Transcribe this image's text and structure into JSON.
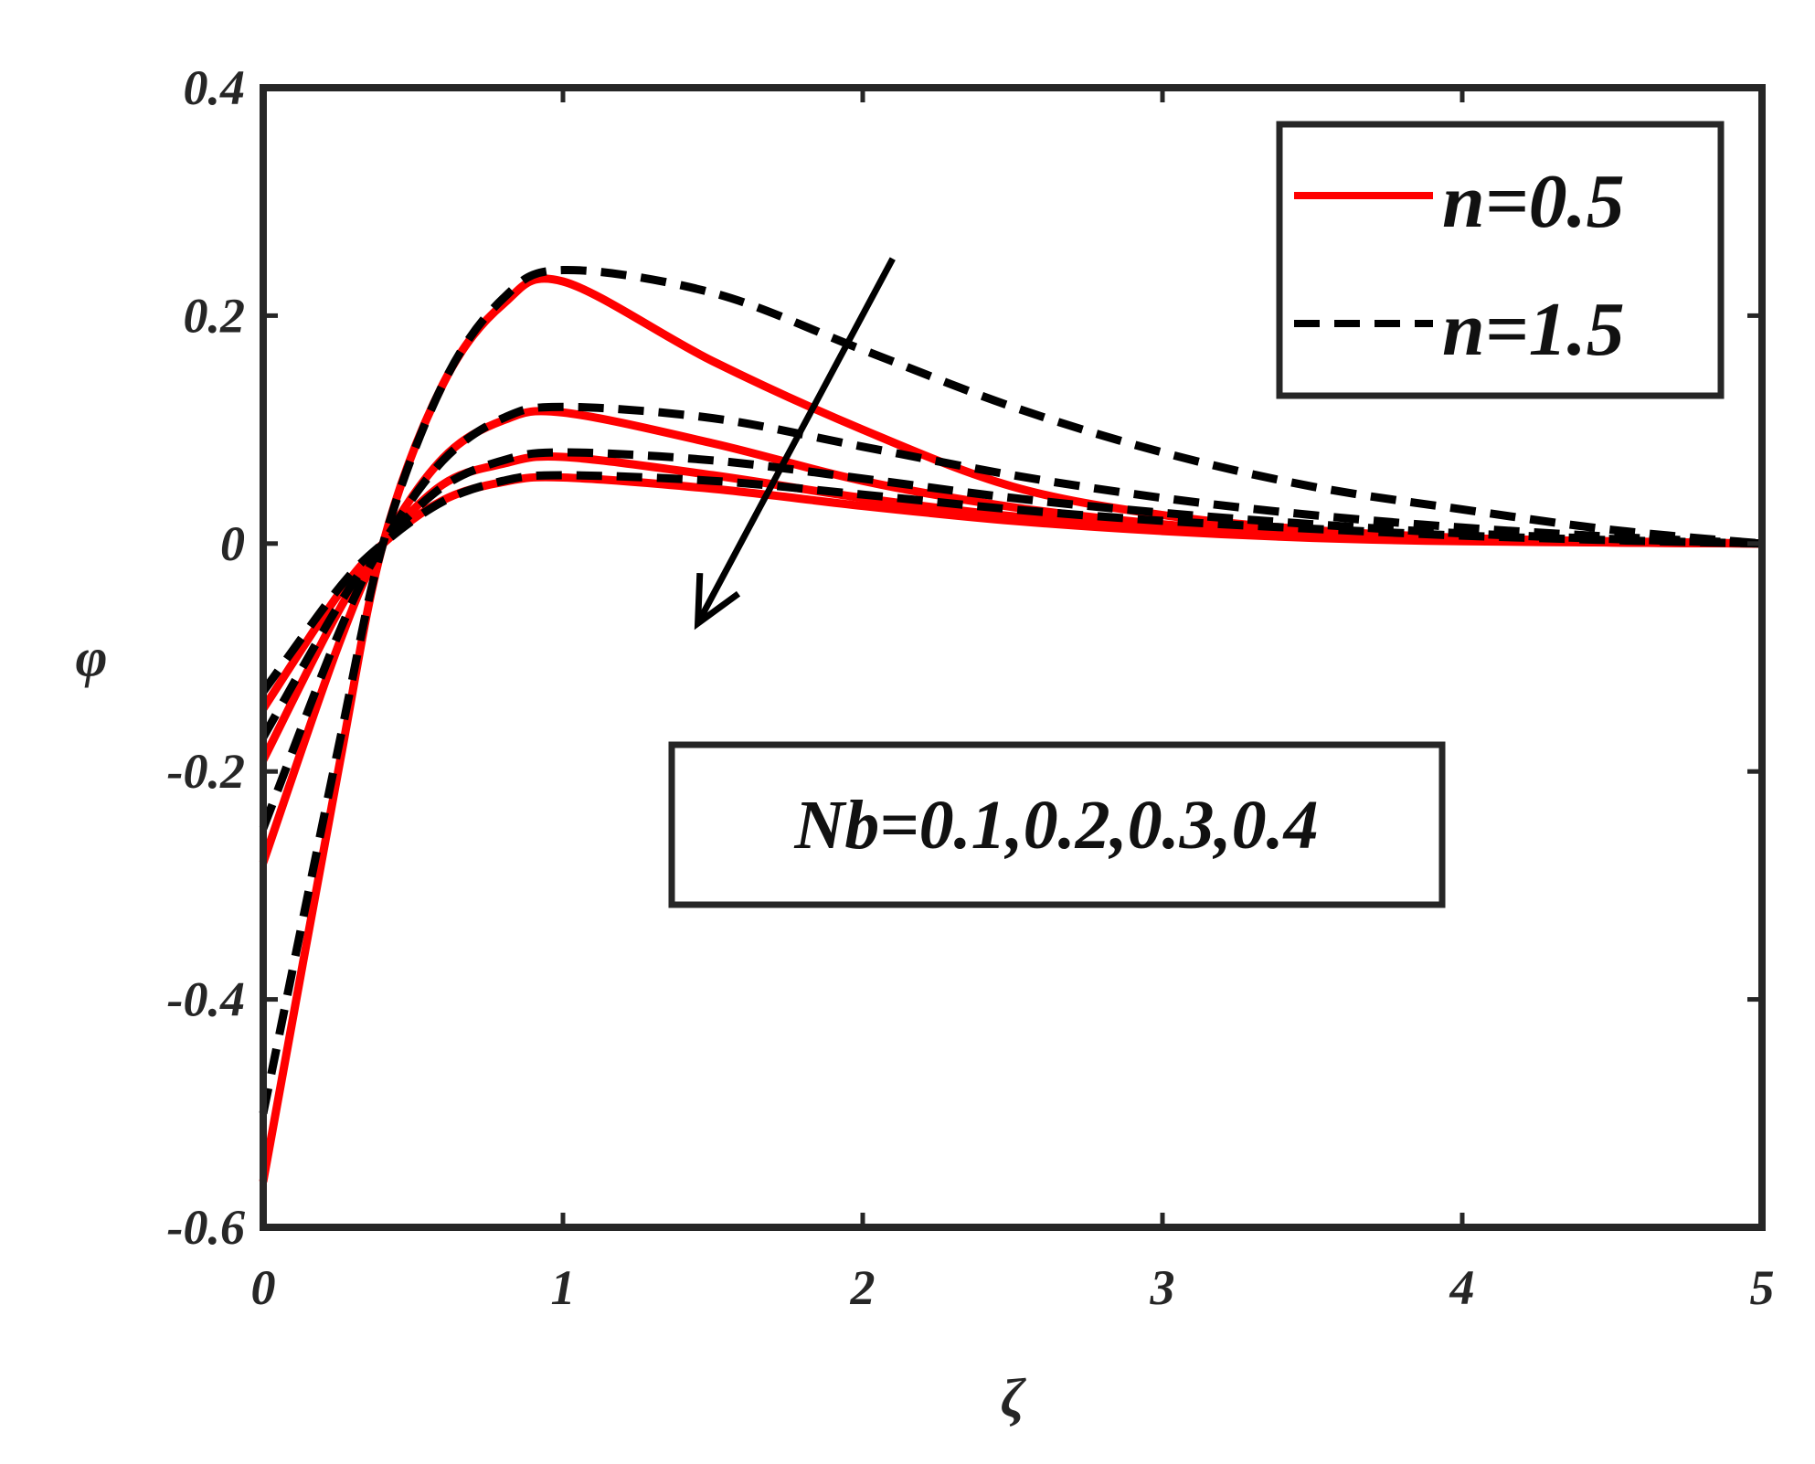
{
  "chart_data": {
    "type": "line",
    "xlabel": "ζ",
    "ylabel": "φ",
    "xlim": [
      0,
      5
    ],
    "ylim": [
      -0.6,
      0.4
    ],
    "xticks": [
      "0",
      "1",
      "2",
      "3",
      "4",
      "5"
    ],
    "yticks": [
      "-0.6",
      "-0.4",
      "-0.2",
      "0",
      "0.2",
      "0.4"
    ],
    "legend": {
      "placement": "top-right",
      "entries": [
        {
          "label": "n=0.5",
          "color": "#ff0000",
          "style": "solid"
        },
        {
          "label": "n=1.5",
          "color": "#000000",
          "style": "dashed"
        }
      ]
    },
    "annotation": "Nb=0.1,0.2,0.3,0.4",
    "arrow": {
      "from": [
        2.1,
        0.25
      ],
      "to": [
        1.45,
        -0.07
      ]
    },
    "x": [
      0,
      0.25,
      0.4,
      0.6,
      0.8,
      1.0,
      1.5,
      2.0,
      2.5,
      3.0,
      3.5,
      4.0,
      4.5,
      5.0
    ],
    "series": [
      {
        "name": "n=0.5",
        "nb": 0.1,
        "style": "solid",
        "color": "#ff0000",
        "values": [
          -0.56,
          -0.2,
          0.0,
          0.14,
          0.21,
          0.23,
          0.16,
          0.1,
          0.05,
          0.025,
          0.012,
          0.005,
          0.002,
          0.0
        ]
      },
      {
        "name": "n=0.5",
        "nb": 0.2,
        "style": "solid",
        "color": "#ff0000",
        "values": [
          -0.28,
          -0.09,
          0.0,
          0.075,
          0.108,
          0.115,
          0.088,
          0.055,
          0.032,
          0.017,
          0.008,
          0.004,
          0.001,
          0.0
        ]
      },
      {
        "name": "n=0.5",
        "nb": 0.3,
        "style": "solid",
        "color": "#ff0000",
        "values": [
          -0.19,
          -0.06,
          0.0,
          0.052,
          0.07,
          0.076,
          0.06,
          0.04,
          0.024,
          0.013,
          0.006,
          0.003,
          0.001,
          0.0
        ]
      },
      {
        "name": "n=0.5",
        "nb": 0.4,
        "style": "solid",
        "color": "#ff0000",
        "values": [
          -0.145,
          -0.045,
          0.0,
          0.038,
          0.054,
          0.058,
          0.048,
          0.033,
          0.02,
          0.011,
          0.005,
          0.002,
          0.001,
          0.0
        ]
      },
      {
        "name": "n=1.5",
        "nb": 0.1,
        "style": "dashed",
        "color": "#000000",
        "values": [
          -0.5,
          -0.18,
          0.0,
          0.14,
          0.215,
          0.24,
          0.22,
          0.17,
          0.12,
          0.08,
          0.05,
          0.03,
          0.012,
          0.0
        ]
      },
      {
        "name": "n=1.5",
        "nb": 0.2,
        "style": "dashed",
        "color": "#000000",
        "values": [
          -0.25,
          -0.08,
          0.0,
          0.073,
          0.11,
          0.12,
          0.11,
          0.085,
          0.06,
          0.04,
          0.025,
          0.014,
          0.006,
          0.0
        ]
      },
      {
        "name": "n=1.5",
        "nb": 0.3,
        "style": "dashed",
        "color": "#000000",
        "values": [
          -0.17,
          -0.055,
          0.0,
          0.05,
          0.073,
          0.08,
          0.073,
          0.057,
          0.04,
          0.027,
          0.017,
          0.009,
          0.004,
          0.0
        ]
      },
      {
        "name": "n=1.5",
        "nb": 0.4,
        "style": "dashed",
        "color": "#000000",
        "values": [
          -0.13,
          -0.04,
          0.0,
          0.037,
          0.055,
          0.06,
          0.055,
          0.043,
          0.03,
          0.02,
          0.013,
          0.007,
          0.003,
          0.0
        ]
      }
    ]
  }
}
